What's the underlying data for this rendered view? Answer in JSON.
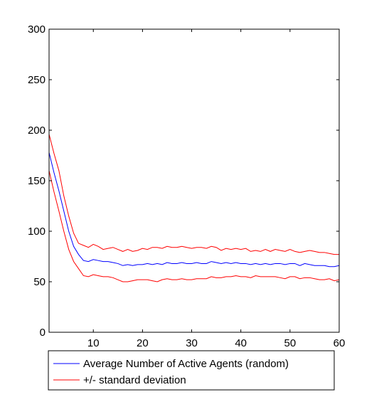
{
  "chart_data": {
    "type": "line",
    "xlim": [
      1,
      60
    ],
    "ylim": [
      0,
      300
    ],
    "xticks": [
      10,
      20,
      30,
      40,
      50,
      60
    ],
    "yticks": [
      0,
      50,
      100,
      150,
      200,
      250,
      300
    ],
    "grid": false,
    "legend_position": "bottom",
    "x": [
      1,
      2,
      3,
      4,
      5,
      6,
      7,
      8,
      9,
      10,
      11,
      12,
      13,
      14,
      15,
      16,
      17,
      18,
      19,
      20,
      21,
      22,
      23,
      24,
      25,
      26,
      27,
      28,
      29,
      30,
      31,
      32,
      33,
      34,
      35,
      36,
      37,
      38,
      39,
      40,
      41,
      42,
      43,
      44,
      45,
      46,
      47,
      48,
      49,
      50,
      51,
      52,
      53,
      54,
      55,
      56,
      57,
      58,
      59,
      60
    ],
    "series": [
      {
        "name": "Average Number of Active Agents (random)",
        "color": "#0000ff",
        "values": [
          178,
          158,
          140,
          120,
          100,
          85,
          77,
          71,
          70,
          72,
          71,
          70,
          70,
          69,
          68,
          66,
          67,
          66,
          67,
          67,
          68,
          67,
          68,
          67,
          69,
          68,
          68,
          69,
          68,
          68,
          69,
          68,
          68,
          70,
          69,
          68,
          69,
          68,
          69,
          68,
          68,
          67,
          68,
          67,
          68,
          67,
          68,
          68,
          67,
          68,
          68,
          66,
          68,
          67,
          66,
          66,
          66,
          65,
          65,
          66
        ]
      },
      {
        "name": "+/- standard deviation",
        "color": "#ff0000",
        "values": [
          196,
          177,
          160,
          135,
          115,
          98,
          88,
          86,
          84,
          87,
          85,
          82,
          83,
          84,
          82,
          80,
          82,
          80,
          81,
          83,
          82,
          84,
          84,
          83,
          85,
          84,
          84,
          85,
          84,
          83,
          84,
          84,
          83,
          85,
          84,
          81,
          83,
          82,
          83,
          82,
          83,
          80,
          81,
          80,
          82,
          80,
          82,
          81,
          80,
          82,
          80,
          79,
          80,
          81,
          80,
          79,
          79,
          78,
          77,
          77
        ]
      },
      {
        "color": "#ff0000",
        "values": [
          160,
          139,
          120,
          100,
          82,
          70,
          63,
          56,
          55,
          57,
          56,
          55,
          55,
          54,
          52,
          50,
          50,
          51,
          52,
          52,
          52,
          51,
          50,
          52,
          53,
          52,
          52,
          53,
          52,
          52,
          53,
          53,
          53,
          55,
          54,
          54,
          55,
          55,
          56,
          55,
          55,
          54,
          56,
          55,
          55,
          55,
          55,
          54,
          53,
          55,
          55,
          53,
          54,
          54,
          53,
          52,
          52,
          53,
          51,
          52
        ]
      }
    ],
    "legend": [
      {
        "label": "Average Number of Active Agents (random)",
        "color": "#0000ff"
      },
      {
        "label": "+/- standard deviation",
        "color": "#ff0000"
      }
    ]
  }
}
